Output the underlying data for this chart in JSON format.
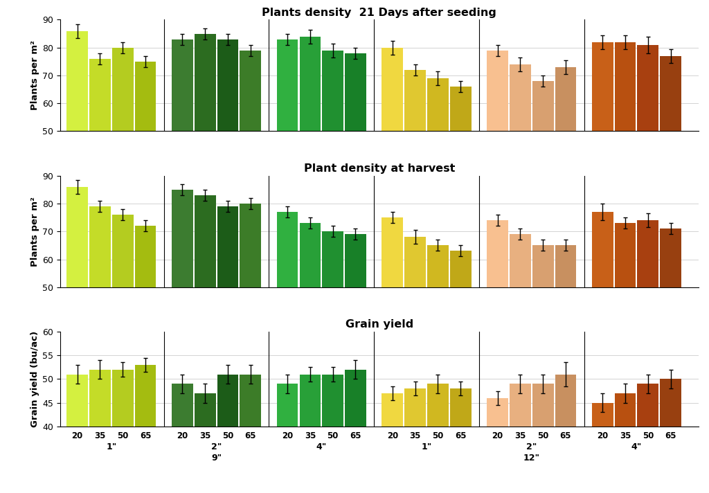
{
  "title1": "Plants density  21 Days after seeding",
  "title2": "Plant density at harvest",
  "title3": "Grain yield",
  "ylabel1": "Plants per m²",
  "ylabel2": "Plants per m²",
  "ylabel3": "Grain yield (bu/ac)",
  "ylim1": [
    50,
    90
  ],
  "ylim2": [
    50,
    90
  ],
  "ylim3": [
    40,
    60
  ],
  "yticks1": [
    50,
    60,
    70,
    80,
    90
  ],
  "yticks2": [
    50,
    60,
    70,
    80,
    90
  ],
  "yticks3": [
    40,
    45,
    50,
    55,
    60
  ],
  "bar_colors_9_1": [
    "#d4f040",
    "#c4dc28",
    "#b4cc20",
    "#a4bc10"
  ],
  "bar_colors_9_2": [
    "#3c7c30",
    "#2c6c20",
    "#1c5c18",
    "#3c7c28"
  ],
  "bar_colors_9_4": [
    "#30b040",
    "#28a038",
    "#209030",
    "#188028"
  ],
  "bar_colors_12_1": [
    "#f0d840",
    "#e0c830",
    "#d0b820",
    "#c0a818"
  ],
  "bar_colors_12_2": [
    "#f8c090",
    "#e8b080",
    "#d8a070",
    "#c89060"
  ],
  "bar_colors_12_4": [
    "#c86018",
    "#b85010",
    "#a84010",
    "#984010"
  ],
  "plot1": {
    "9_1": [
      86,
      76,
      80,
      75
    ],
    "9_2": [
      83,
      85,
      83,
      79
    ],
    "9_4": [
      83,
      84,
      79,
      78
    ],
    "12_1": [
      80,
      72,
      69,
      66
    ],
    "12_2": [
      79,
      74,
      68,
      73
    ],
    "12_4": [
      82,
      82,
      81,
      77
    ]
  },
  "err1": {
    "9_1": [
      2.5,
      2.0,
      2.0,
      2.0
    ],
    "9_2": [
      2.0,
      2.0,
      2.0,
      2.0
    ],
    "9_4": [
      2.0,
      2.5,
      2.5,
      2.0
    ],
    "12_1": [
      2.5,
      2.0,
      2.5,
      2.0
    ],
    "12_2": [
      2.0,
      2.5,
      2.0,
      2.5
    ],
    "12_4": [
      2.5,
      2.5,
      3.0,
      2.5
    ]
  },
  "plot2": {
    "9_1": [
      86,
      79,
      76,
      72
    ],
    "9_2": [
      85,
      83,
      79,
      80
    ],
    "9_4": [
      77,
      73,
      70,
      69
    ],
    "12_1": [
      75,
      68,
      65,
      63
    ],
    "12_2": [
      74,
      69,
      65,
      65
    ],
    "12_4": [
      77,
      73,
      74,
      71
    ]
  },
  "err2": {
    "9_1": [
      2.5,
      2.0,
      2.0,
      2.0
    ],
    "9_2": [
      2.0,
      2.0,
      2.0,
      2.0
    ],
    "9_4": [
      2.0,
      2.0,
      2.0,
      2.0
    ],
    "12_1": [
      2.0,
      2.5,
      2.0,
      2.0
    ],
    "12_2": [
      2.0,
      2.0,
      2.0,
      2.0
    ],
    "12_4": [
      3.0,
      2.0,
      2.5,
      2.0
    ]
  },
  "plot3": {
    "9_1": [
      51,
      52,
      52,
      53
    ],
    "9_2": [
      49,
      47,
      51,
      51
    ],
    "9_4": [
      49,
      51,
      51,
      52
    ],
    "12_1": [
      47,
      48,
      49,
      48
    ],
    "12_2": [
      46,
      49,
      49,
      51
    ],
    "12_4": [
      45,
      47,
      49,
      50
    ]
  },
  "err3": {
    "9_1": [
      2.0,
      2.0,
      1.5,
      1.5
    ],
    "9_2": [
      2.0,
      2.0,
      2.0,
      2.0
    ],
    "9_4": [
      2.0,
      1.5,
      1.5,
      2.0
    ],
    "12_1": [
      1.5,
      1.5,
      2.0,
      1.5
    ],
    "12_2": [
      1.5,
      2.0,
      2.0,
      2.5
    ],
    "12_4": [
      2.0,
      2.0,
      2.0,
      2.0
    ]
  }
}
